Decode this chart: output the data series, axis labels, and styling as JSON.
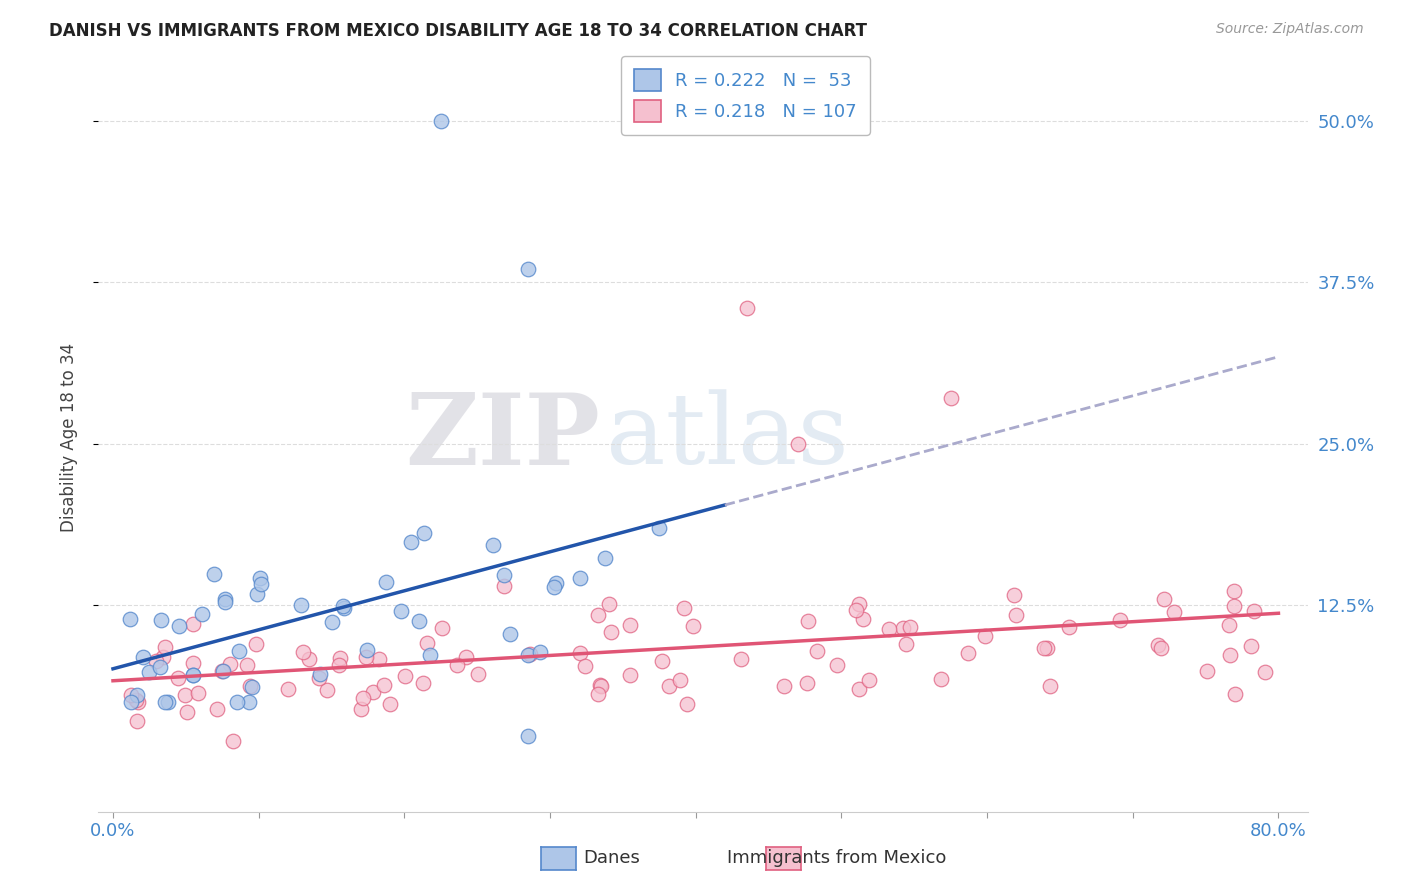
{
  "title": "DANISH VS IMMIGRANTS FROM MEXICO DISABILITY AGE 18 TO 34 CORRELATION CHART",
  "source": "Source: ZipAtlas.com",
  "ylabel_label": "Disability Age 18 to 34",
  "ytick_labels": [
    "50.0%",
    "37.5%",
    "25.0%",
    "12.5%"
  ],
  "ytick_values": [
    0.5,
    0.375,
    0.25,
    0.125
  ],
  "xlim": [
    -0.01,
    0.82
  ],
  "ylim": [
    -0.035,
    0.545
  ],
  "danes_color": "#aec6e8",
  "danes_edge_color": "#5588cc",
  "mexico_color": "#f5c0cf",
  "mexico_edge_color": "#e06080",
  "danes_R": 0.222,
  "danes_N": 53,
  "mexico_R": 0.218,
  "mexico_N": 107,
  "legend_label_danes": "Danes",
  "legend_label_mexico": "Immigrants from Mexico",
  "danes_line_color": "#2255aa",
  "mexico_line_color": "#e05575",
  "danes_line_end_x": 0.42,
  "danes_dashed_color": "#aaaacc",
  "watermark_zip": "ZIP",
  "watermark_atlas": "atlas",
  "background_color": "#ffffff",
  "grid_color": "#dddddd",
  "title_color": "#222222",
  "source_color": "#999999",
  "tick_color": "#4488cc"
}
